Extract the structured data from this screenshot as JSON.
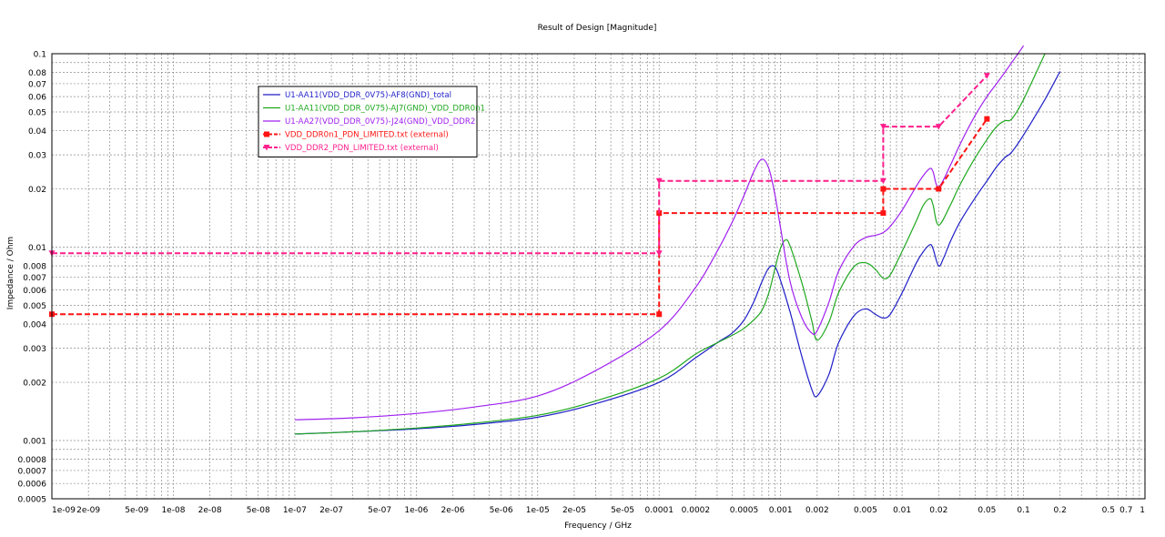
{
  "chart_data": {
    "type": "line",
    "title": "Result of Design [Magnitude]",
    "xlabel": "Frequency / GHz",
    "ylabel": "Impedance / Ohm",
    "x_scale": "log",
    "y_scale": "log",
    "xlim": [
      1e-09,
      1
    ],
    "ylim": [
      0.0005,
      0.1
    ],
    "grid": true,
    "legend_position": "top-left",
    "x_tick_labels": [
      "1e-09",
      "2e-09",
      "5e-09",
      "1e-08",
      "2e-08",
      "5e-08",
      "1e-07",
      "2e-07",
      "5e-07",
      "1e-06",
      "2e-06",
      "5e-06",
      "1e-05",
      "2e-05",
      "5e-05",
      "0.0001",
      "0.0002",
      "0.0005",
      "0.001",
      "0.002",
      "0.005",
      "0.01",
      "0.02",
      "0.05",
      "0.1",
      "0.2",
      "0.5",
      "0.7",
      "1"
    ],
    "y_tick_labels": [
      "0.1",
      "0.08",
      "0.07",
      "0.06",
      "0.05",
      "0.04",
      "0.03",
      "0.02",
      "0.01",
      "0.008",
      "0.007",
      "0.006",
      "0.005",
      "0.004",
      "0.003",
      "0.002",
      "0.001",
      "0.0008",
      "0.0007",
      "0.0006",
      "0.0005"
    ],
    "series": [
      {
        "name": "U1-AA11(VDD_DDR_0V75)-AF8(GND)_total",
        "color": "#1f1fc8",
        "marker": "none",
        "dash": false,
        "x": [
          1e-07,
          3e-07,
          1e-06,
          3e-06,
          1e-05,
          3e-05,
          0.0001,
          0.0002,
          0.0003,
          0.0004,
          0.0005,
          0.0006,
          0.0007,
          0.0008,
          0.0009,
          0.001,
          0.0012,
          0.0015,
          0.0018,
          0.002,
          0.0025,
          0.003,
          0.004,
          0.005,
          0.006,
          0.007,
          0.008,
          0.01,
          0.013,
          0.015,
          0.017,
          0.018,
          0.02,
          0.022,
          0.025,
          0.03,
          0.04,
          0.05,
          0.06,
          0.07,
          0.08,
          0.1,
          0.15,
          0.2
        ],
        "y": [
          0.00108,
          0.00111,
          0.00115,
          0.00121,
          0.00132,
          0.00155,
          0.002,
          0.00268,
          0.0032,
          0.0036,
          0.0042,
          0.0052,
          0.0066,
          0.0078,
          0.0079,
          0.0067,
          0.0046,
          0.0027,
          0.00185,
          0.0017,
          0.0022,
          0.0032,
          0.0044,
          0.0048,
          0.0045,
          0.0043,
          0.0045,
          0.0058,
          0.0082,
          0.0095,
          0.0103,
          0.0098,
          0.008,
          0.0088,
          0.0107,
          0.0135,
          0.018,
          0.022,
          0.026,
          0.029,
          0.031,
          0.038,
          0.058,
          0.081
        ]
      },
      {
        "name": "U1-AA11(VDD_DDR_0V75)-AJ7(GND)_VDD_DDR0n1",
        "color": "#1fa81f",
        "marker": "none",
        "dash": false,
        "x": [
          1e-07,
          3e-07,
          1e-06,
          3e-06,
          1e-05,
          3e-05,
          0.0001,
          0.0002,
          0.0003,
          0.0004,
          0.0005,
          0.0006,
          0.0007,
          0.0008,
          0.0009,
          0.001,
          0.0011,
          0.0012,
          0.0015,
          0.0018,
          0.002,
          0.0025,
          0.003,
          0.004,
          0.005,
          0.006,
          0.007,
          0.008,
          0.01,
          0.013,
          0.015,
          0.017,
          0.018,
          0.02,
          0.025,
          0.03,
          0.04,
          0.05,
          0.06,
          0.07,
          0.08,
          0.1,
          0.15
        ],
        "y": [
          0.00108,
          0.00111,
          0.00116,
          0.00123,
          0.00135,
          0.0016,
          0.0021,
          0.0028,
          0.0032,
          0.0035,
          0.0038,
          0.0042,
          0.0047,
          0.0058,
          0.0078,
          0.0099,
          0.0109,
          0.0101,
          0.0065,
          0.0042,
          0.0033,
          0.0041,
          0.0058,
          0.0079,
          0.0083,
          0.0077,
          0.0069,
          0.0072,
          0.0095,
          0.0135,
          0.0165,
          0.0178,
          0.0165,
          0.013,
          0.0165,
          0.021,
          0.029,
          0.036,
          0.042,
          0.045,
          0.046,
          0.058,
          0.1
        ]
      },
      {
        "name": "U1-AA27(VDD_DDR_0V75)-J24(GND)_VDD_DDR2",
        "color": "#a020f0",
        "marker": "none",
        "dash": false,
        "x": [
          1e-07,
          3e-07,
          1e-06,
          3e-06,
          1e-05,
          3e-05,
          0.0001,
          0.0002,
          0.0003,
          0.0004,
          0.0005,
          0.0006,
          0.0007,
          0.0008,
          0.0009,
          0.001,
          0.0012,
          0.0015,
          0.0018,
          0.002,
          0.0025,
          0.003,
          0.004,
          0.005,
          0.006,
          0.007,
          0.008,
          0.01,
          0.013,
          0.015,
          0.017,
          0.018,
          0.02,
          0.025,
          0.03,
          0.04,
          0.05,
          0.06,
          0.07,
          0.08,
          0.1
        ],
        "y": [
          0.00128,
          0.00131,
          0.00138,
          0.00149,
          0.0017,
          0.0023,
          0.0037,
          0.0062,
          0.0095,
          0.0135,
          0.0185,
          0.0245,
          0.0285,
          0.0255,
          0.0185,
          0.0125,
          0.0066,
          0.0043,
          0.0036,
          0.0037,
          0.0052,
          0.0075,
          0.0101,
          0.0112,
          0.0115,
          0.0119,
          0.0128,
          0.0155,
          0.0205,
          0.0235,
          0.0255,
          0.0245,
          0.0205,
          0.0265,
          0.034,
          0.048,
          0.06,
          0.07,
          0.08,
          0.09,
          0.11
        ]
      },
      {
        "name": "VDD_DDR0n1_PDN_LIMITED.txt (external)",
        "color": "#ff1414",
        "marker": "square",
        "dash": true,
        "x": [
          1e-09,
          0.0001,
          0.0001,
          0.007,
          0.007,
          0.02,
          0.05
        ],
        "y": [
          0.0045,
          0.0045,
          0.015,
          0.015,
          0.02,
          0.02,
          0.046
        ]
      },
      {
        "name": "VDD_DDR2_PDN_LIMITED.txt (external)",
        "color": "#ff1f8c",
        "marker": "triangle-down",
        "dash": true,
        "x": [
          1e-09,
          0.0001,
          0.0001,
          0.007,
          0.007,
          0.02,
          0.05
        ],
        "y": [
          0.0093,
          0.0093,
          0.022,
          0.022,
          0.042,
          0.042,
          0.077
        ]
      }
    ]
  }
}
